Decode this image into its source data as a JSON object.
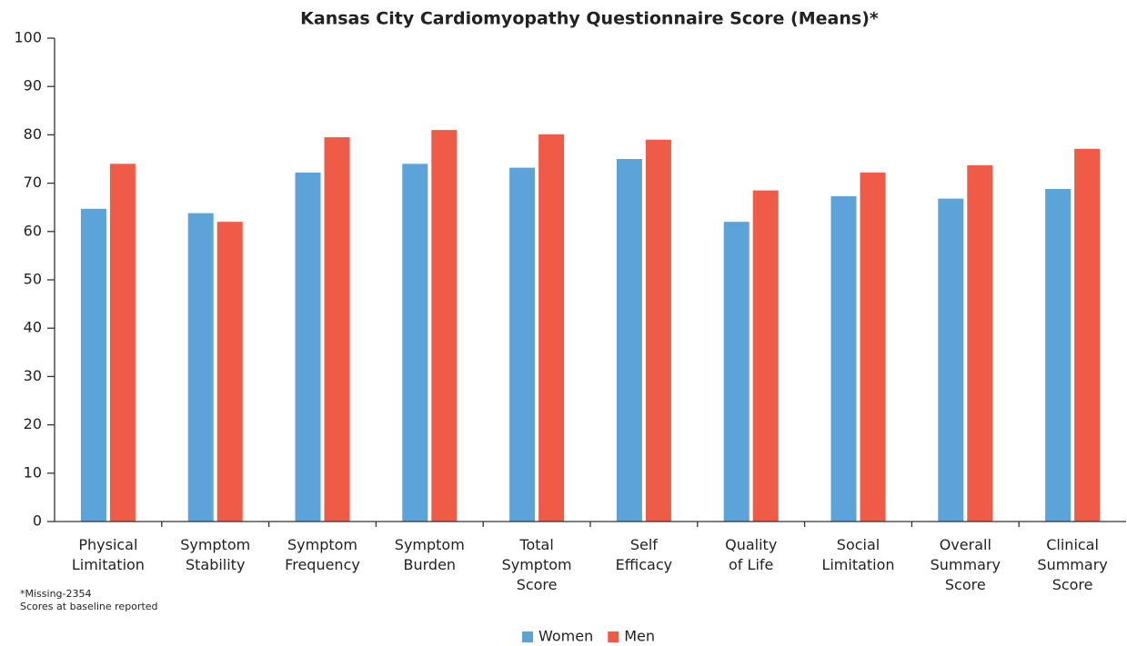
{
  "chart_data": {
    "type": "bar",
    "title": "Kansas City Cardiomyopathy Questionnaire Score (Means)*",
    "categories": [
      "Physical\nLimitation",
      "Symptom\nStability",
      "Symptom\nFrequency",
      "Symptom\nBurden",
      "Total\nSymptom\nScore",
      "Self\nEfficacy",
      "Quality\nof Life",
      "Social\nLimitation",
      "Overall\nSummary\nScore",
      "Clinical\nSummary\nScore"
    ],
    "series": [
      {
        "name": "Women",
        "color": "#5ba3d9",
        "values": [
          64.7,
          63.8,
          72.2,
          74,
          73.2,
          75,
          62,
          67.3,
          66.8,
          68.8
        ]
      },
      {
        "name": "Men",
        "color": "#ef5b47",
        "values": [
          74,
          62,
          79.5,
          81,
          80.1,
          79,
          68.5,
          72.2,
          73.7,
          77.1
        ]
      }
    ],
    "ylim": [
      0,
      100
    ],
    "yticks": [
      0,
      10,
      20,
      30,
      40,
      50,
      60,
      70,
      80,
      90,
      100
    ],
    "notes": [
      "*Missing-2354",
      "Scores at baseline reported"
    ],
    "legend": "bottom"
  }
}
